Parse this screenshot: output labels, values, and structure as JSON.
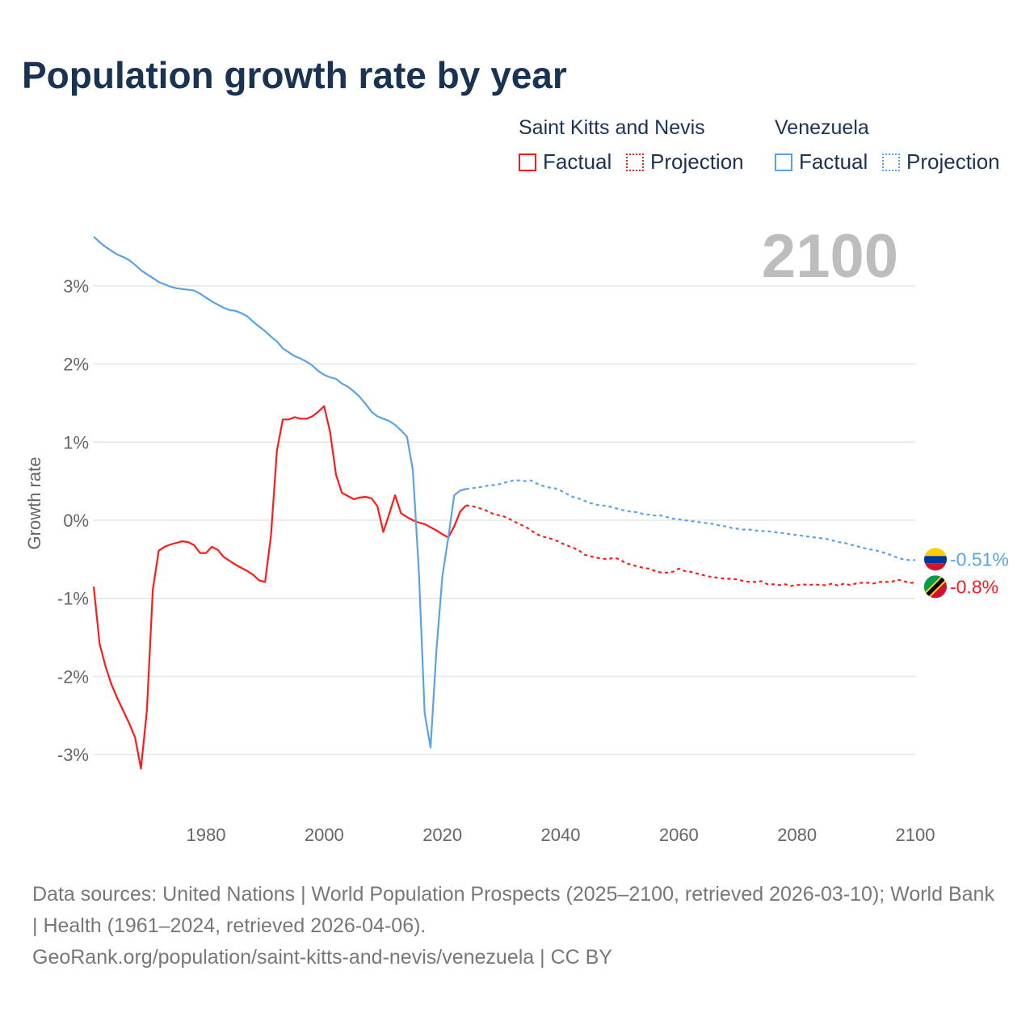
{
  "title": "Population growth rate by year",
  "legend": {
    "groups": [
      {
        "country": "Saint Kitts and Nevis",
        "factual": "Factual",
        "projection": "Projection",
        "color": "#ff1a1a"
      },
      {
        "country": "Venezuela",
        "factual": "Factual",
        "projection": "Projection",
        "color": "#5aa2e6"
      }
    ]
  },
  "current_year": "2100",
  "footer": {
    "sources": "Data sources: United Nations | World Population Prospects (2025–2100, retrieved 2026-03-10); World Bank | Health (1961–2024, retrieved 2026-04-06).",
    "link": "GeoRank.org/population/saint-kitts-and-nevis/venezuela | CC BY"
  },
  "chart_data": {
    "type": "line",
    "title": "Population growth rate by year",
    "xlabel": "",
    "ylabel": "Growth rate",
    "xlim": [
      1961,
      2100
    ],
    "ylim": [
      -3.4,
      3.9
    ],
    "yticks": [
      3,
      2,
      1,
      0,
      -1,
      -2,
      -3
    ],
    "ytick_labels": [
      "3%",
      "2%",
      "1%",
      "0%",
      "-1%",
      "-2%",
      "-3%"
    ],
    "xticks": [
      1980,
      2000,
      2020,
      2040,
      2060,
      2080,
      2100
    ],
    "xtick_labels": [
      "1980",
      "2000",
      "2020",
      "2040",
      "2060",
      "2080",
      "2100"
    ],
    "grid": true,
    "series": [
      {
        "name": "Saint Kitts and Nevis",
        "color": "#ff1a1a",
        "end_label": "-0.8%",
        "factual_start": 1961,
        "factual": [
          -0.85,
          -1.58,
          -1.87,
          -2.1,
          -2.28,
          -2.44,
          -2.6,
          -2.78,
          -3.18,
          -2.44,
          -0.89,
          -0.39,
          -0.34,
          -0.31,
          -0.29,
          -0.27,
          -0.28,
          -0.32,
          -0.42,
          -0.42,
          -0.34,
          -0.38,
          -0.47,
          -0.52,
          -0.57,
          -0.61,
          -0.65,
          -0.7,
          -0.77,
          -0.79,
          -0.19,
          0.89,
          1.29,
          1.29,
          1.32,
          1.3,
          1.3,
          1.33,
          1.39,
          1.46,
          1.13,
          0.58,
          0.35,
          0.31,
          0.27,
          0.29,
          0.3,
          0.28,
          0.18,
          -0.15,
          0.08,
          0.32,
          0.09,
          0.04,
          0.0,
          -0.03,
          -0.05,
          -0.09,
          -0.13,
          -0.18,
          -0.22,
          -0.08,
          0.11,
          0.19
        ],
        "projection_start": 2024,
        "projection": [
          0.19,
          0.18,
          0.16,
          0.14,
          0.1,
          0.07,
          0.06,
          0.03,
          -0.01,
          -0.05,
          -0.08,
          -0.13,
          -0.18,
          -0.21,
          -0.23,
          -0.25,
          -0.29,
          -0.32,
          -0.35,
          -0.38,
          -0.44,
          -0.46,
          -0.48,
          -0.49,
          -0.5,
          -0.48,
          -0.5,
          -0.55,
          -0.57,
          -0.59,
          -0.61,
          -0.62,
          -0.65,
          -0.67,
          -0.67,
          -0.66,
          -0.62,
          -0.65,
          -0.66,
          -0.68,
          -0.7,
          -0.72,
          -0.73,
          -0.74,
          -0.75,
          -0.75,
          -0.76,
          -0.78,
          -0.79,
          -0.79,
          -0.78,
          -0.82,
          -0.82,
          -0.83,
          -0.82,
          -0.84,
          -0.83,
          -0.82,
          -0.83,
          -0.82,
          -0.83,
          -0.83,
          -0.81,
          -0.84,
          -0.81,
          -0.83,
          -0.81,
          -0.8,
          -0.8,
          -0.81,
          -0.79,
          -0.79,
          -0.79,
          -0.76,
          -0.78,
          -0.8,
          -0.8
        ]
      },
      {
        "name": "Venezuela",
        "color": "#5aa2e6",
        "end_label": "-0.51%",
        "factual_start": 1961,
        "factual": [
          3.63,
          3.56,
          3.5,
          3.45,
          3.4,
          3.37,
          3.33,
          3.27,
          3.2,
          3.15,
          3.1,
          3.05,
          3.02,
          2.99,
          2.97,
          2.96,
          2.95,
          2.94,
          2.9,
          2.85,
          2.8,
          2.76,
          2.72,
          2.69,
          2.68,
          2.65,
          2.61,
          2.54,
          2.48,
          2.42,
          2.35,
          2.29,
          2.2,
          2.15,
          2.1,
          2.07,
          2.03,
          1.98,
          1.91,
          1.86,
          1.83,
          1.81,
          1.75,
          1.71,
          1.65,
          1.58,
          1.49,
          1.39,
          1.33,
          1.3,
          1.27,
          1.22,
          1.15,
          1.07,
          0.64,
          -0.63,
          -2.47,
          -2.91,
          -1.66,
          -0.71,
          -0.22,
          0.32,
          0.38,
          0.4
        ],
        "projection_start": 2024,
        "projection": [
          0.4,
          0.41,
          0.42,
          0.43,
          0.45,
          0.45,
          0.47,
          0.49,
          0.51,
          0.51,
          0.5,
          0.51,
          0.47,
          0.44,
          0.42,
          0.41,
          0.38,
          0.34,
          0.3,
          0.28,
          0.25,
          0.22,
          0.2,
          0.19,
          0.18,
          0.16,
          0.14,
          0.12,
          0.11,
          0.1,
          0.08,
          0.07,
          0.06,
          0.06,
          0.04,
          0.02,
          0.01,
          0.0,
          -0.01,
          -0.02,
          -0.03,
          -0.04,
          -0.05,
          -0.07,
          -0.08,
          -0.1,
          -0.11,
          -0.12,
          -0.12,
          -0.13,
          -0.14,
          -0.14,
          -0.15,
          -0.16,
          -0.17,
          -0.18,
          -0.19,
          -0.2,
          -0.21,
          -0.22,
          -0.23,
          -0.24,
          -0.26,
          -0.28,
          -0.29,
          -0.31,
          -0.33,
          -0.35,
          -0.37,
          -0.38,
          -0.4,
          -0.42,
          -0.45,
          -0.48,
          -0.5,
          -0.51,
          -0.51
        ]
      }
    ]
  }
}
